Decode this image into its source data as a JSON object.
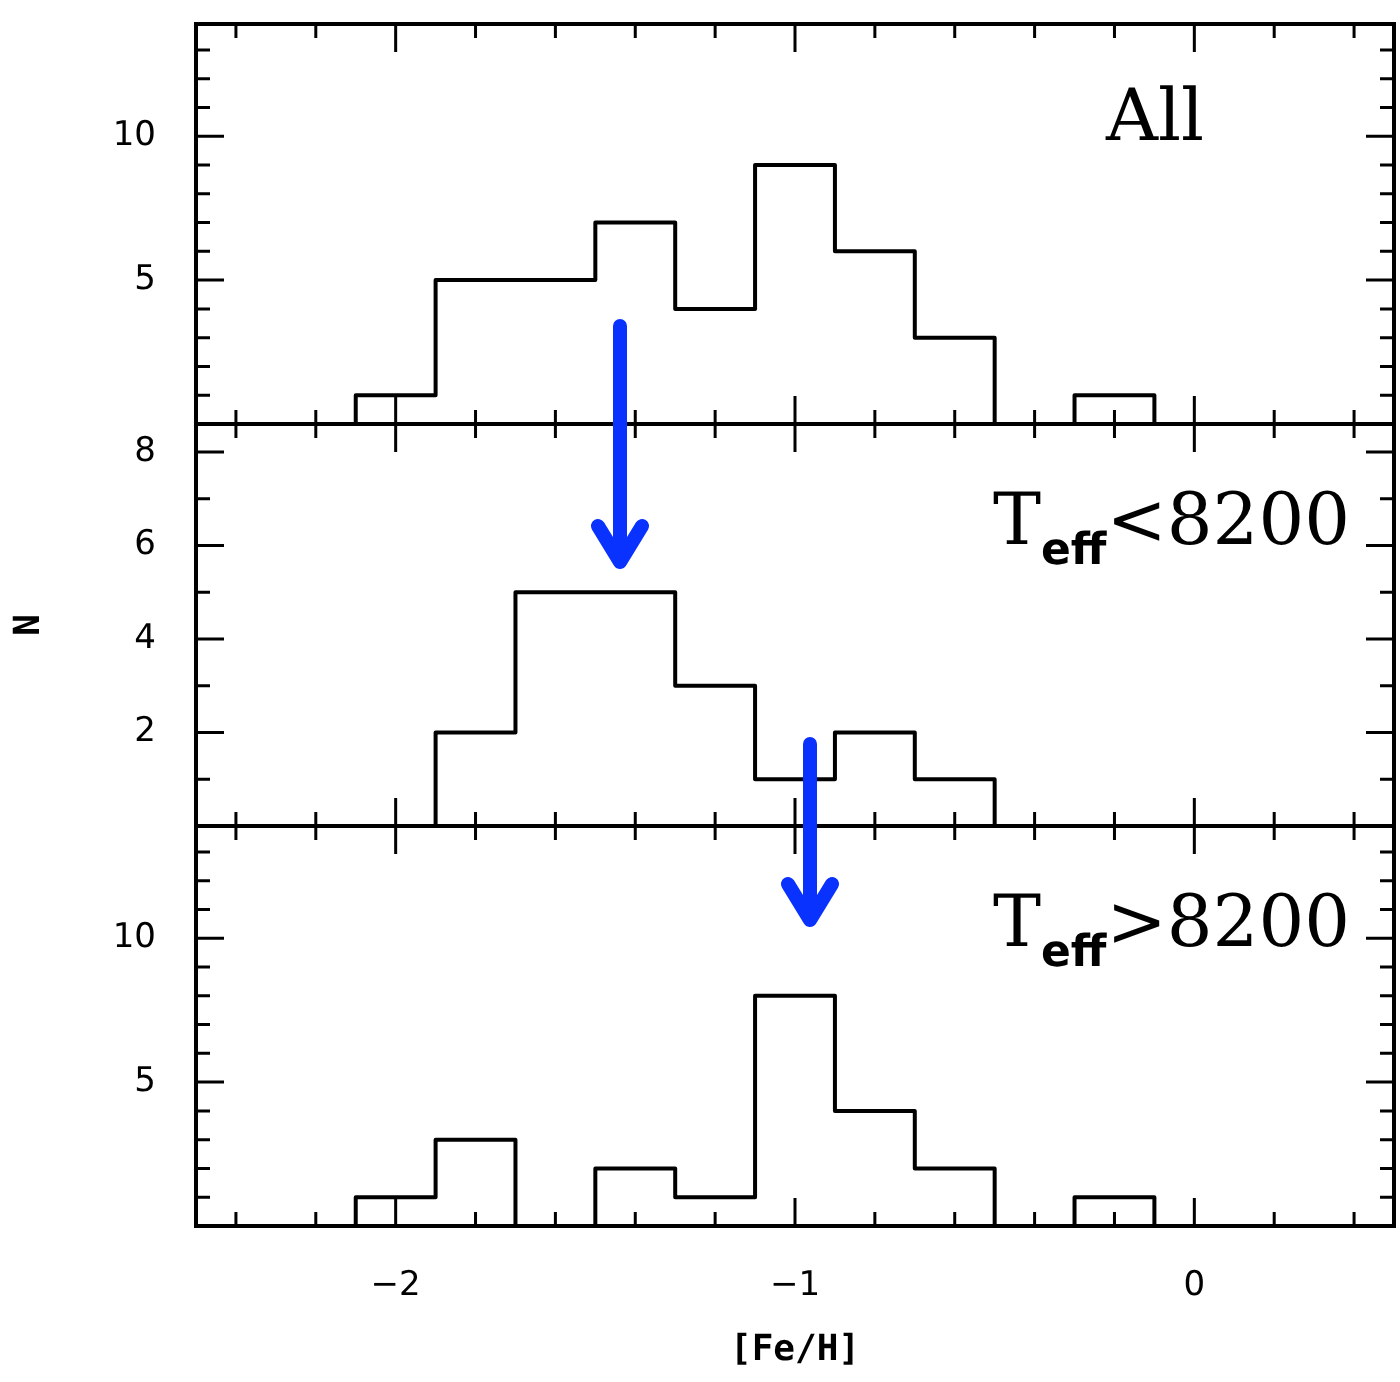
{
  "chart_data": [
    {
      "type": "step",
      "annotations": [
        "All"
      ],
      "x": [
        -2.1,
        -2.1,
        -1.9,
        -1.7,
        -1.5,
        -1.3,
        -1.1,
        -0.9,
        -0.7,
        -0.5,
        -0.3,
        -0.1
      ],
      "values": [
        0,
        1,
        5,
        5,
        7,
        4,
        9,
        6,
        3,
        0,
        1,
        0
      ],
      "color": "#000000",
      "xlim": [
        -2.5,
        0.5
      ],
      "xticks": [
        {
          "value": -2.4,
          "label": null
        },
        {
          "value": -2.2,
          "label": null
        },
        -2,
        {
          "value": -1.8,
          "label": null
        },
        {
          "value": -1.6,
          "label": null
        },
        {
          "value": -1.4,
          "label": null
        },
        {
          "value": -1.2,
          "label": null
        },
        -1,
        {
          "value": -0.8,
          "label": null
        },
        {
          "value": -0.6,
          "label": null
        },
        {
          "value": -0.4,
          "label": null
        },
        {
          "value": -0.2,
          "label": null
        },
        0,
        {
          "value": 0.2,
          "label": null
        },
        {
          "value": 0.4,
          "label": null
        }
      ],
      "ylim": [
        0,
        13.9
      ],
      "yticks": [
        {
          "value": 1,
          "label": null
        },
        {
          "value": 2,
          "label": null
        },
        {
          "value": 3,
          "label": null
        },
        {
          "value": 4,
          "label": null
        },
        5,
        {
          "value": 6,
          "label": null
        },
        {
          "value": 7,
          "label": null
        },
        {
          "value": 8,
          "label": null
        },
        {
          "value": 9,
          "label": null
        },
        10,
        {
          "value": 11,
          "label": null
        },
        {
          "value": 12,
          "label": null
        },
        {
          "value": 13,
          "label": null
        }
      ],
      "tick_labels": "y"
    },
    {
      "type": "step",
      "annotations": [
        "T$_{eff}$<8200"
      ],
      "ylabel": "N",
      "x": [
        -1.9,
        -1.9,
        -1.7,
        -1.5,
        -1.3,
        -1.1,
        -0.9,
        -0.7,
        -0.5
      ],
      "values": [
        0,
        2,
        5,
        5,
        3,
        1,
        2,
        1,
        0
      ],
      "color": "#000000",
      "xlim": [
        -2.5,
        0.5
      ],
      "xticks": [
        {
          "value": -2.4,
          "label": null
        },
        {
          "value": -2.2,
          "label": null
        },
        -2,
        {
          "value": -1.8,
          "label": null
        },
        {
          "value": -1.6,
          "label": null
        },
        {
          "value": -1.4,
          "label": null
        },
        {
          "value": -1.2,
          "label": null
        },
        -1,
        {
          "value": -0.8,
          "label": null
        },
        {
          "value": -0.6,
          "label": null
        },
        {
          "value": -0.4,
          "label": null
        },
        {
          "value": -0.2,
          "label": null
        },
        0,
        {
          "value": 0.2,
          "label": null
        },
        {
          "value": 0.4,
          "label": null
        }
      ],
      "ylim": [
        0,
        8.6
      ],
      "yticks": [
        {
          "value": 1,
          "label": null
        },
        2,
        {
          "value": 3,
          "label": null
        },
        4,
        {
          "value": 5,
          "label": null
        },
        6,
        {
          "value": 7,
          "label": null
        },
        8
      ],
      "tick_labels": "y"
    },
    {
      "type": "step",
      "annotations": [
        "T$_{eff}$>8200"
      ],
      "xlabel": "[Fe/H]",
      "x": [
        -2.1,
        -2.1,
        -1.9,
        -1.7,
        -1.5,
        -1.3,
        -1.1,
        -0.9,
        -0.7,
        -0.5,
        -0.3,
        -0.1
      ],
      "values": [
        0,
        1,
        3,
        0,
        2,
        1,
        8,
        4,
        2,
        0,
        1,
        0
      ],
      "color": "#000000",
      "xlim": [
        -2.5,
        0.5
      ],
      "xticks": [
        {
          "value": -2.4,
          "label": null
        },
        {
          "value": -2.2,
          "label": null
        },
        {
          "value": -2,
          "label": "−2"
        },
        {
          "value": -1.8,
          "label": null
        },
        {
          "value": -1.6,
          "label": null
        },
        {
          "value": -1.4,
          "label": null
        },
        {
          "value": -1.2,
          "label": null
        },
        {
          "value": -1,
          "label": "−1"
        },
        {
          "value": -0.8,
          "label": null
        },
        {
          "value": -0.6,
          "label": null
        },
        {
          "value": -0.4,
          "label": null
        },
        {
          "value": -0.2,
          "label": null
        },
        {
          "value": 0,
          "label": "0"
        },
        {
          "value": 0.2,
          "label": null
        },
        {
          "value": 0.4,
          "label": null
        }
      ],
      "ylim": [
        0,
        13.9
      ],
      "yticks": [
        {
          "value": 1,
          "label": null
        },
        {
          "value": 2,
          "label": null
        },
        {
          "value": 3,
          "label": null
        },
        {
          "value": 4,
          "label": null
        },
        5,
        {
          "value": 6,
          "label": null
        },
        {
          "value": 7,
          "label": null
        },
        {
          "value": 8,
          "label": null
        },
        {
          "value": 9,
          "label": null
        },
        10,
        {
          "value": 11,
          "label": null
        },
        {
          "value": 12,
          "label": null
        },
        {
          "value": 13,
          "label": null
        }
      ]
    }
  ]
}
